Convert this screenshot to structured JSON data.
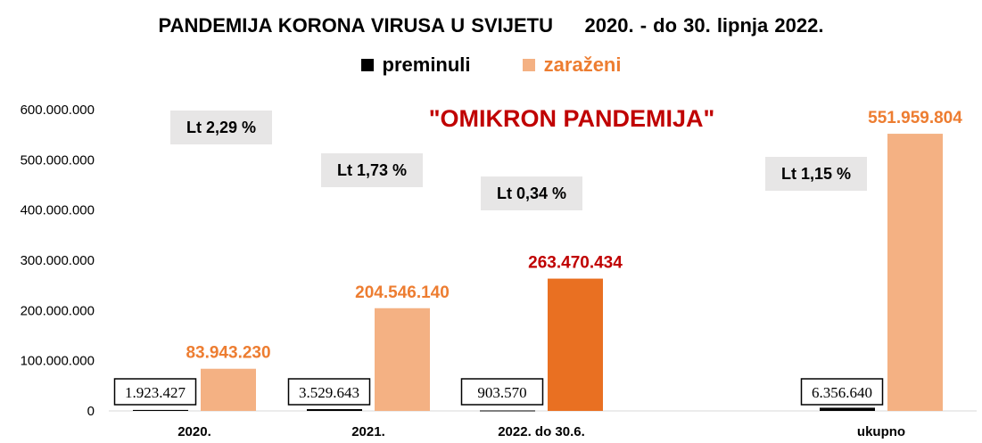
{
  "chart_data": {
    "type": "bar",
    "title": "PANDEMIJA KORONA VIRUSA U SVIJETU     2020. - do 30. lipnja 2022.",
    "categories": [
      "2020.",
      "2021.",
      "2022. do 30.6.",
      "ukupno"
    ],
    "series": [
      {
        "name": "preminuli",
        "color": "#000000",
        "values": [
          1923427,
          3529643,
          903570,
          6356640
        ],
        "labels": [
          "1.923.427",
          "3.529.643",
          "903.570",
          "6.356.640"
        ]
      },
      {
        "name": "zaraženi",
        "color": "#f4b183",
        "values": [
          83943230,
          204546140,
          263470434,
          551959804
        ],
        "labels": [
          "83.943.230",
          "204.546.140",
          "263.470.434",
          "551.959.804"
        ],
        "highlight_index": 2,
        "highlight_color": "#e97022",
        "highlight_label_color": "#c00000",
        "label_color": "#ed7d31"
      }
    ],
    "ylim": [
      0,
      600000000
    ],
    "yticks": [
      0,
      100000000,
      200000000,
      300000000,
      400000000,
      500000000,
      600000000
    ],
    "ytick_labels": [
      "0",
      "100.000.000",
      "200.000.000",
      "300.000.000",
      "400.000.000",
      "500.000.000",
      "600.000.000"
    ],
    "legend_position": "top-center",
    "grid": false,
    "annotations": {
      "lethality": [
        "Lt 2,29 %",
        "Lt 1,73 %",
        "Lt 0,34 %",
        "Lt 1,15 %"
      ],
      "headline": "\"OMIKRON PANDEMIJA\""
    }
  }
}
